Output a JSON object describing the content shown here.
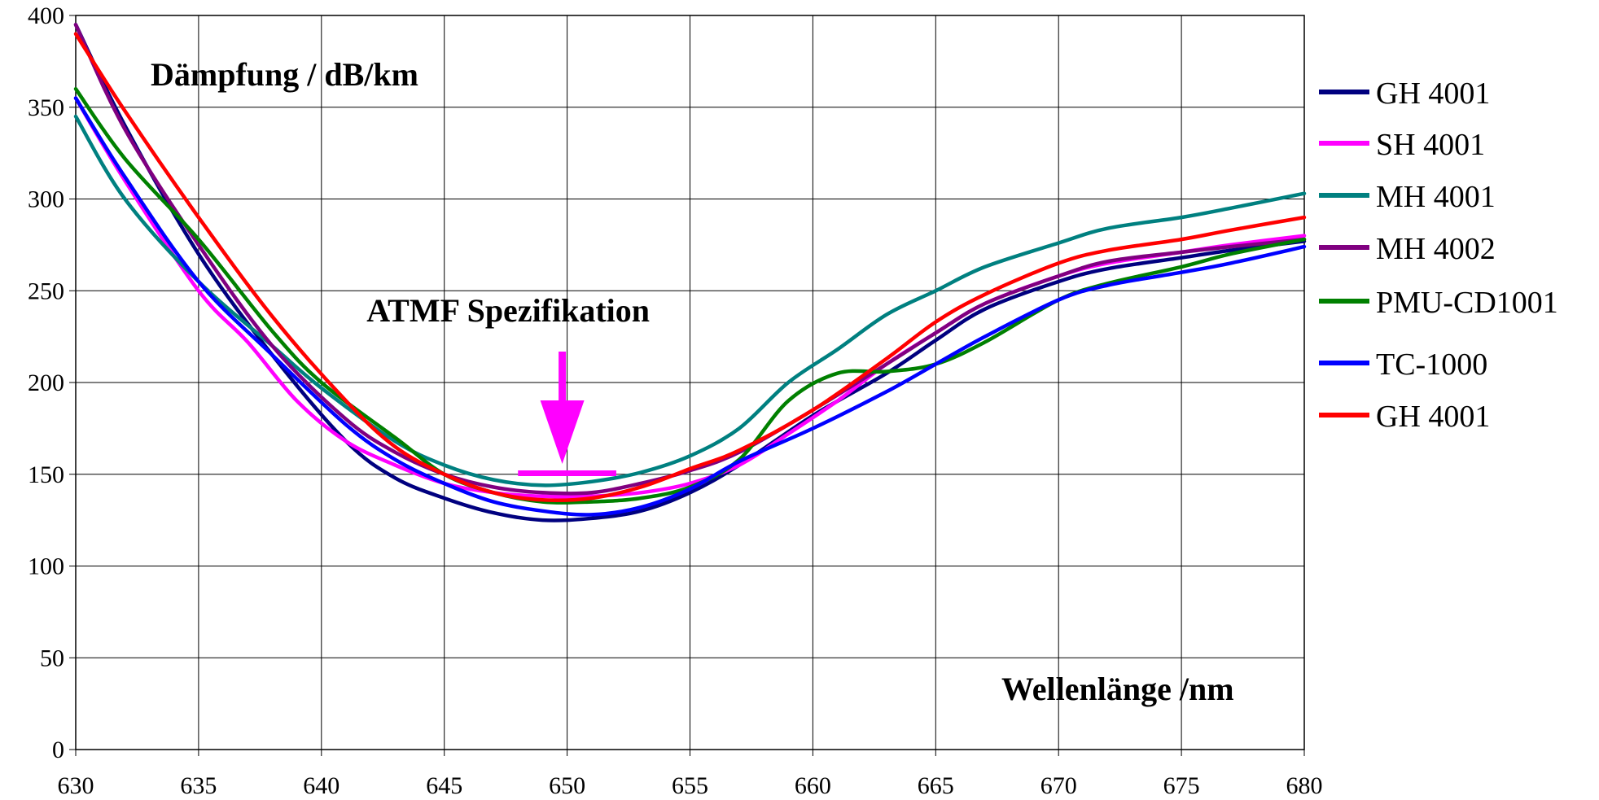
{
  "chart_data": {
    "type": "line",
    "ylabel": "Dämpfung / dB/km",
    "xlabel": "Wellenlänge /nm",
    "annotation": {
      "text": "ATMF Spezifikation",
      "x": 650,
      "y": 155,
      "x_range": [
        648,
        652
      ],
      "color": "#FF00FF"
    },
    "xlim": [
      630,
      680
    ],
    "ylim": [
      0,
      400
    ],
    "xticks": [
      "630",
      "635",
      "640",
      "645",
      "650",
      "655",
      "660",
      "665",
      "670",
      "675",
      "680"
    ],
    "yticks": [
      "0",
      "50",
      "100",
      "150",
      "200",
      "250",
      "300",
      "350",
      "400"
    ],
    "grid": true,
    "legend_position": "right",
    "series": [
      {
        "name": "GH 4001",
        "color": "#00007F",
        "points": [
          [
            630,
            395
          ],
          [
            632,
            340
          ],
          [
            635,
            270
          ],
          [
            638,
            215
          ],
          [
            641,
            168
          ],
          [
            643,
            148
          ],
          [
            645,
            137
          ],
          [
            647,
            129
          ],
          [
            649,
            125
          ],
          [
            651,
            126
          ],
          [
            653,
            130
          ],
          [
            655,
            140
          ],
          [
            657,
            155
          ],
          [
            660,
            182
          ],
          [
            663,
            205
          ],
          [
            665,
            223
          ],
          [
            667,
            240
          ],
          [
            670,
            255
          ],
          [
            672,
            262
          ],
          [
            675,
            268
          ],
          [
            677,
            272
          ],
          [
            680,
            277
          ]
        ]
      },
      {
        "name": "SH 4001",
        "color": "#FF00FF",
        "points": [
          [
            630,
            355
          ],
          [
            632,
            310
          ],
          [
            635,
            250
          ],
          [
            637,
            222
          ],
          [
            639,
            190
          ],
          [
            641,
            168
          ],
          [
            643,
            155
          ],
          [
            645,
            145
          ],
          [
            647,
            140
          ],
          [
            649,
            138
          ],
          [
            651,
            138
          ],
          [
            653,
            140
          ],
          [
            655,
            145
          ],
          [
            657,
            155
          ],
          [
            659,
            172
          ],
          [
            661,
            190
          ],
          [
            663,
            210
          ],
          [
            665,
            227
          ],
          [
            667,
            243
          ],
          [
            670,
            258
          ],
          [
            672,
            265
          ],
          [
            675,
            271
          ],
          [
            677,
            275
          ],
          [
            680,
            280
          ]
        ]
      },
      {
        "name": "MH 4001",
        "color": "#008080",
        "points": [
          [
            630,
            345
          ],
          [
            632,
            300
          ],
          [
            635,
            255
          ],
          [
            638,
            220
          ],
          [
            640,
            197
          ],
          [
            643,
            168
          ],
          [
            645,
            155
          ],
          [
            647,
            147
          ],
          [
            649,
            144
          ],
          [
            651,
            146
          ],
          [
            653,
            151
          ],
          [
            655,
            160
          ],
          [
            657,
            175
          ],
          [
            659,
            200
          ],
          [
            661,
            218
          ],
          [
            663,
            237
          ],
          [
            665,
            250
          ],
          [
            667,
            263
          ],
          [
            670,
            276
          ],
          [
            672,
            284
          ],
          [
            675,
            290
          ],
          [
            677,
            295
          ],
          [
            680,
            303
          ]
        ]
      },
      {
        "name": "MH 4002",
        "color": "#800080",
        "points": [
          [
            630,
            395
          ],
          [
            632,
            338
          ],
          [
            635,
            275
          ],
          [
            638,
            220
          ],
          [
            641,
            180
          ],
          [
            643,
            162
          ],
          [
            645,
            150
          ],
          [
            647,
            143
          ],
          [
            649,
            140
          ],
          [
            651,
            140
          ],
          [
            653,
            145
          ],
          [
            655,
            152
          ],
          [
            657,
            162
          ],
          [
            660,
            185
          ],
          [
            663,
            210
          ],
          [
            665,
            227
          ],
          [
            667,
            243
          ],
          [
            670,
            258
          ],
          [
            672,
            266
          ],
          [
            675,
            271
          ],
          [
            677,
            274
          ],
          [
            680,
            278
          ]
        ]
      },
      {
        "name": "PMU-CD1001",
        "color": "#008000",
        "points": [
          [
            630,
            360
          ],
          [
            632,
            322
          ],
          [
            635,
            278
          ],
          [
            638,
            228
          ],
          [
            640,
            200
          ],
          [
            643,
            170
          ],
          [
            645,
            150
          ],
          [
            647,
            140
          ],
          [
            649,
            135
          ],
          [
            651,
            135
          ],
          [
            653,
            137
          ],
          [
            655,
            143
          ],
          [
            657,
            158
          ],
          [
            659,
            190
          ],
          [
            661,
            205
          ],
          [
            663,
            206
          ],
          [
            665,
            210
          ],
          [
            667,
            222
          ],
          [
            670,
            245
          ],
          [
            672,
            254
          ],
          [
            675,
            263
          ],
          [
            677,
            270
          ],
          [
            680,
            278
          ]
        ]
      },
      {
        "name": "TC-1000",
        "color": "#0000FF",
        "points": [
          [
            630,
            355
          ],
          [
            632,
            312
          ],
          [
            635,
            255
          ],
          [
            638,
            215
          ],
          [
            641,
            177
          ],
          [
            643,
            158
          ],
          [
            645,
            145
          ],
          [
            647,
            135
          ],
          [
            649,
            130
          ],
          [
            651,
            128
          ],
          [
            653,
            132
          ],
          [
            655,
            142
          ],
          [
            657,
            157
          ],
          [
            660,
            175
          ],
          [
            663,
            195
          ],
          [
            665,
            210
          ],
          [
            667,
            225
          ],
          [
            670,
            245
          ],
          [
            672,
            253
          ],
          [
            675,
            260
          ],
          [
            677,
            265
          ],
          [
            680,
            274
          ]
        ]
      },
      {
        "name": "GH 4001",
        "color": "#FF0000",
        "points": [
          [
            630,
            390
          ],
          [
            632,
            348
          ],
          [
            635,
            290
          ],
          [
            638,
            236
          ],
          [
            641,
            190
          ],
          [
            643,
            165
          ],
          [
            645,
            150
          ],
          [
            647,
            140
          ],
          [
            649,
            136
          ],
          [
            651,
            137
          ],
          [
            653,
            143
          ],
          [
            655,
            153
          ],
          [
            657,
            163
          ],
          [
            660,
            185
          ],
          [
            663,
            213
          ],
          [
            665,
            233
          ],
          [
            667,
            248
          ],
          [
            670,
            265
          ],
          [
            672,
            272
          ],
          [
            675,
            278
          ],
          [
            677,
            283
          ],
          [
            680,
            290
          ]
        ]
      }
    ]
  }
}
